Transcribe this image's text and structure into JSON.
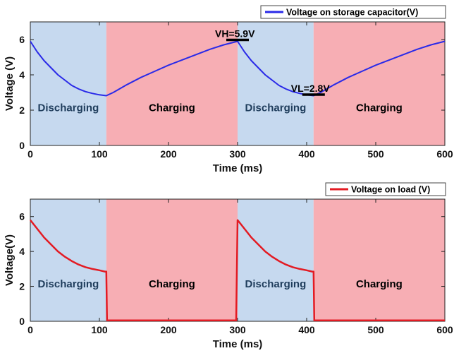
{
  "colors": {
    "discharge_shade": "#c6d9ef",
    "charge_shade": "#f7aeb4",
    "capacitor_line": "#2a2ae8",
    "load_line": "#e31b23",
    "region_label": "#1f3d5c",
    "marker": "#000000"
  },
  "chart_data": [
    {
      "type": "line",
      "xlabel": "Time (ms)",
      "ylabel": "Voltage (V)",
      "xlim": [
        0,
        600
      ],
      "ylim": [
        0,
        7
      ],
      "xticks": [
        0,
        100,
        200,
        300,
        400,
        500,
        600
      ],
      "yticks": [
        0,
        2,
        4,
        6
      ],
      "grid": false,
      "legend": {
        "placement": "top-right",
        "entries": [
          "Voltage on storage capacitor(V)"
        ]
      },
      "regions": [
        {
          "label": "Discharging",
          "x0": 0,
          "x1": 110,
          "kind": "discharge"
        },
        {
          "label": "Charging",
          "x0": 110,
          "x1": 300,
          "kind": "charge"
        },
        {
          "label": "Discharging",
          "x0": 300,
          "x1": 410,
          "kind": "discharge"
        },
        {
          "label": "Charging",
          "x0": 410,
          "x1": 600,
          "kind": "charge"
        }
      ],
      "annotations": [
        {
          "text": "VH=5.9V",
          "x": 300,
          "y": 5.9
        },
        {
          "text": "VL=2.8V",
          "x": 410,
          "y": 2.8
        }
      ],
      "series": [
        {
          "name": "Voltage on storage capacitor(V)",
          "x": [
            0,
            10,
            20,
            30,
            40,
            50,
            60,
            70,
            80,
            90,
            100,
            110,
            120,
            140,
            160,
            180,
            200,
            220,
            240,
            260,
            280,
            300,
            310,
            320,
            330,
            340,
            350,
            360,
            370,
            380,
            390,
            400,
            410,
            420,
            440,
            460,
            480,
            500,
            520,
            540,
            560,
            580,
            600
          ],
          "y": [
            5.9,
            5.3,
            4.8,
            4.4,
            4.0,
            3.7,
            3.4,
            3.2,
            3.05,
            2.95,
            2.87,
            2.82,
            3.0,
            3.45,
            3.85,
            4.2,
            4.55,
            4.85,
            5.15,
            5.45,
            5.7,
            5.9,
            5.3,
            4.8,
            4.4,
            4.0,
            3.7,
            3.4,
            3.2,
            3.05,
            2.95,
            2.87,
            2.82,
            3.0,
            3.45,
            3.85,
            4.2,
            4.55,
            4.85,
            5.15,
            5.45,
            5.7,
            5.9
          ]
        }
      ]
    },
    {
      "type": "line",
      "xlabel": "Time (ms)",
      "ylabel": "Voltage(V)",
      "xlim": [
        0,
        600
      ],
      "ylim": [
        0,
        7
      ],
      "xticks": [
        0,
        100,
        200,
        300,
        400,
        500,
        600
      ],
      "yticks": [
        0,
        2,
        4,
        6
      ],
      "grid": false,
      "legend": {
        "placement": "top-right",
        "entries": [
          "Voltage on load (V)"
        ]
      },
      "regions": [
        {
          "label": "Discharging",
          "x0": 0,
          "x1": 110,
          "kind": "discharge"
        },
        {
          "label": "Charging",
          "x0": 110,
          "x1": 300,
          "kind": "charge"
        },
        {
          "label": "Discharging",
          "x0": 300,
          "x1": 410,
          "kind": "discharge"
        },
        {
          "label": "Charging",
          "x0": 410,
          "x1": 600,
          "kind": "charge"
        }
      ],
      "series": [
        {
          "name": "Voltage on load (V)",
          "x": [
            0,
            10,
            20,
            30,
            40,
            50,
            60,
            70,
            80,
            90,
            100,
            108,
            110,
            111,
            150,
            200,
            250,
            298,
            300,
            301,
            310,
            320,
            330,
            340,
            350,
            360,
            370,
            380,
            390,
            400,
            408,
            410,
            411,
            450,
            500,
            550,
            600
          ],
          "y": [
            5.8,
            5.3,
            4.8,
            4.4,
            4.0,
            3.7,
            3.45,
            3.25,
            3.1,
            3.0,
            2.92,
            2.85,
            2.85,
            0.05,
            0.05,
            0.05,
            0.05,
            0.05,
            5.8,
            5.75,
            5.3,
            4.8,
            4.4,
            4.0,
            3.7,
            3.45,
            3.25,
            3.1,
            3.0,
            2.92,
            2.85,
            2.85,
            0.05,
            0.05,
            0.05,
            0.05,
            0.05
          ]
        }
      ]
    }
  ]
}
